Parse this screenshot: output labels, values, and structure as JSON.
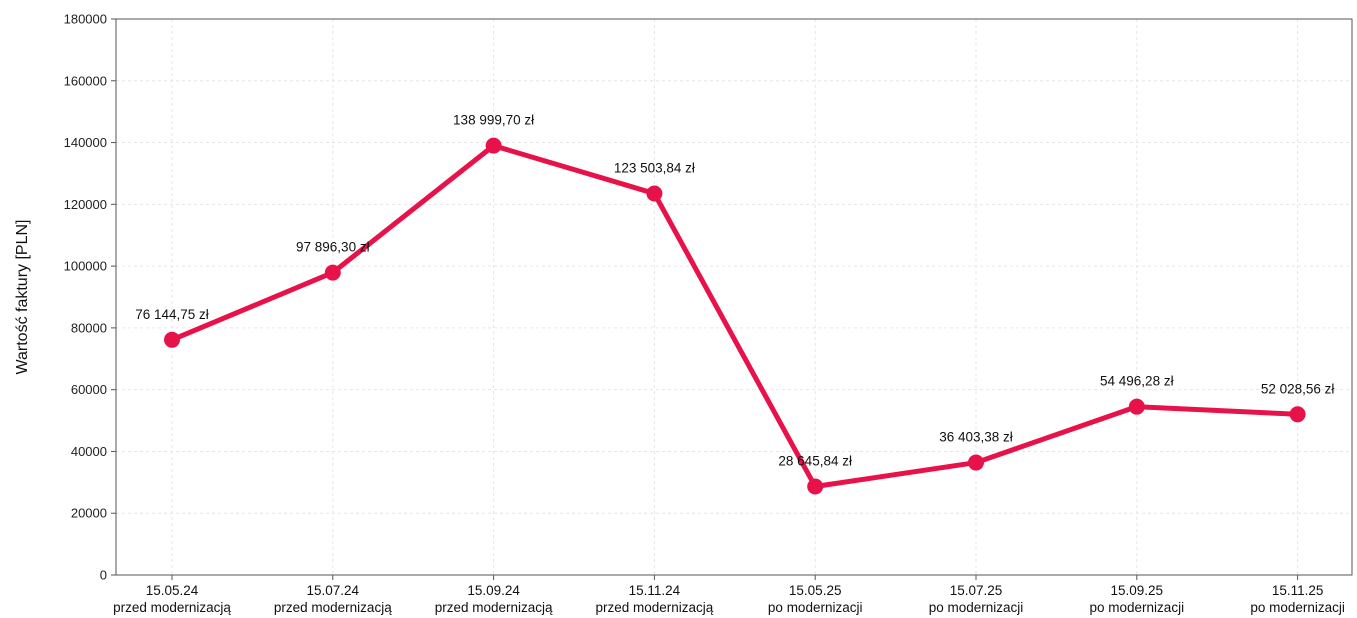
{
  "chart_data": {
    "type": "line",
    "title": "",
    "xlabel": "",
    "ylabel": "Wartość faktury [PLN]",
    "ylim": [
      0,
      180000
    ],
    "yticks": [
      0,
      20000,
      40000,
      60000,
      80000,
      100000,
      120000,
      140000,
      160000,
      180000
    ],
    "grid": true,
    "legend": "none",
    "line_color": "#e8124a",
    "categories": [
      {
        "date": "15.05.24",
        "phase": "przed modernizacją"
      },
      {
        "date": "15.07.24",
        "phase": "przed modernizacją"
      },
      {
        "date": "15.09.24",
        "phase": "przed modernizacją"
      },
      {
        "date": "15.11.24",
        "phase": "przed modernizacją"
      },
      {
        "date": "15.05.25",
        "phase": "po modernizacji"
      },
      {
        "date": "15.07.25",
        "phase": "po modernizacji"
      },
      {
        "date": "15.09.25",
        "phase": "po modernizacji"
      },
      {
        "date": "15.11.25",
        "phase": "po modernizacji"
      }
    ],
    "series": [
      {
        "values": [
          76144.75,
          97896.3,
          138999.7,
          123503.84,
          28645.84,
          36403.38,
          54496.28,
          52028.56
        ],
        "labels": [
          "76 144,75 zł",
          "97 896,30 zł",
          "138 999,70 zł",
          "123 503,84 zł",
          "28 645,84 zł",
          "36 403,38 zł",
          "54 496,28 zł",
          "52 028,56 zł"
        ]
      }
    ]
  }
}
